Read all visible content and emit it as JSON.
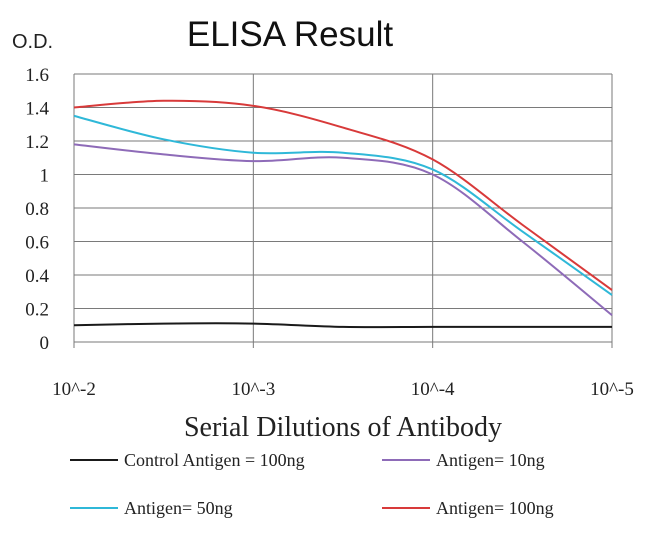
{
  "chart_data": {
    "type": "line",
    "title": "ELISA Result",
    "ylabel": "O.D.",
    "xlabel": "Serial Dilutions of Antibody",
    "categories": [
      "10^-2",
      "10^-3",
      "10^-4",
      "10^-5"
    ],
    "x": [
      -2,
      -2.5,
      -3,
      -3.5,
      -4,
      -4.5,
      -5
    ],
    "ylim": [
      0,
      1.6
    ],
    "yticks": [
      "0",
      "0.2",
      "0.4",
      "0.6",
      "0.8",
      "1",
      "1.2",
      "1.4",
      "1.6"
    ],
    "grid": true,
    "legend_position": "bottom",
    "series": [
      {
        "name": "Control Antigen = 100ng",
        "color": "#1a1a1a",
        "values": [
          0.1,
          0.11,
          0.11,
          0.09,
          0.09,
          0.09,
          0.09
        ]
      },
      {
        "name": "Antigen= 10ng",
        "color": "#8e6bb8",
        "values": [
          1.18,
          1.12,
          1.08,
          1.1,
          1.0,
          0.6,
          0.16
        ]
      },
      {
        "name": "Antigen= 50ng",
        "color": "#2fb8d8",
        "values": [
          1.35,
          1.21,
          1.13,
          1.13,
          1.03,
          0.66,
          0.28
        ]
      },
      {
        "name": "Antigen= 100ng",
        "color": "#d83a3a",
        "values": [
          1.4,
          1.44,
          1.41,
          1.28,
          1.09,
          0.7,
          0.31
        ]
      }
    ]
  }
}
